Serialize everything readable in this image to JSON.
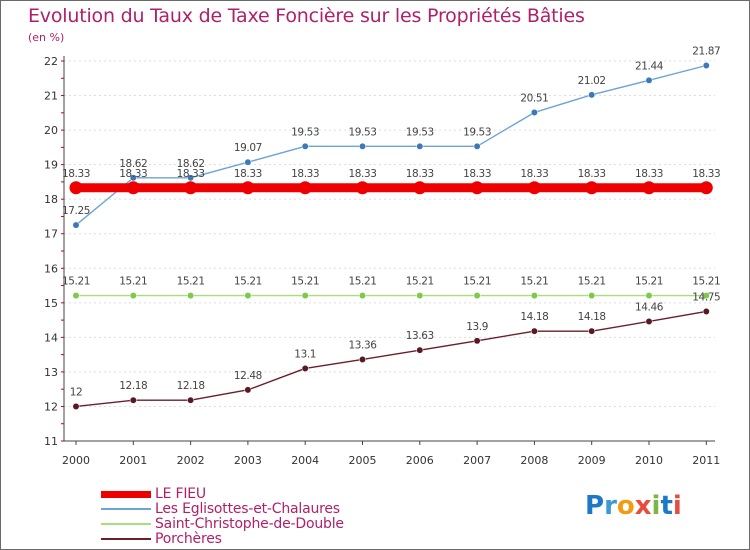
{
  "header": {
    "title": "Evolution du Taux de Taxe Foncière sur les Propriétés Bâties",
    "subtitle": "(en %)"
  },
  "chart_data": {
    "type": "line",
    "title": "Evolution du Taux de Taxe Foncière sur les Propriétés Bâties",
    "ylabel": "(en %)",
    "xlabel": "",
    "categories": [
      "2000",
      "2001",
      "2002",
      "2003",
      "2004",
      "2005",
      "2006",
      "2007",
      "2008",
      "2009",
      "2010",
      "2011"
    ],
    "ylim": [
      11,
      22
    ],
    "yticks": [
      "11",
      "12",
      "13",
      "14",
      "15",
      "16",
      "17",
      "18",
      "19",
      "20",
      "21",
      "22"
    ],
    "grid": "horizontal-dotted",
    "series": [
      {
        "name": "LE FIEU",
        "color": "#ee0000",
        "style": "thick",
        "values": [
          18.33,
          18.33,
          18.33,
          18.33,
          18.33,
          18.33,
          18.33,
          18.33,
          18.33,
          18.33,
          18.33,
          18.33
        ],
        "labels": [
          "18.33",
          "18.33",
          "18.33",
          "18.33",
          "18.33",
          "18.33",
          "18.33",
          "18.33",
          "18.33",
          "18.33",
          "18.33",
          "18.33"
        ]
      },
      {
        "name": "Les Eglisottes-et-Chalaures",
        "color": "#6ea3d6",
        "marker_color": "#3a7ab8",
        "style": "normal",
        "values": [
          17.25,
          18.62,
          18.62,
          19.07,
          19.53,
          19.53,
          19.53,
          19.53,
          20.51,
          21.02,
          21.44,
          21.87
        ],
        "labels": [
          "17.25",
          "18.62",
          "18.62",
          "19.07",
          "19.53",
          "19.53",
          "19.53",
          "19.53",
          "20.51",
          "21.02",
          "21.44",
          "21.87"
        ]
      },
      {
        "name": "Saint-Christophe-de-Double",
        "color": "#a6e07a",
        "marker_color": "#7ec84a",
        "style": "normal",
        "values": [
          15.21,
          15.21,
          15.21,
          15.21,
          15.21,
          15.21,
          15.21,
          15.21,
          15.21,
          15.21,
          15.21,
          15.21
        ],
        "labels": [
          "15.21",
          "15.21",
          "15.21",
          "15.21",
          "15.21",
          "15.21",
          "15.21",
          "15.21",
          "15.21",
          "15.21",
          "15.21",
          "15.21"
        ]
      },
      {
        "name": "Porchères",
        "color": "#6b1f2a",
        "marker_color": "#5a1822",
        "style": "normal",
        "values": [
          12,
          12.18,
          12.18,
          12.48,
          13.1,
          13.36,
          13.63,
          13.9,
          14.18,
          14.18,
          14.46,
          14.75
        ],
        "labels": [
          "12",
          "12.18",
          "12.18",
          "12.48",
          "13.1",
          "13.36",
          "13.63",
          "13.9",
          "14.18",
          "14.18",
          "14.46",
          "14.75"
        ]
      }
    ],
    "legend_position": "bottom-left"
  },
  "legend": {
    "items": [
      {
        "label": "LE FIEU",
        "color": "#ee0000"
      },
      {
        "label": "Les Eglisottes-et-Chalaures",
        "color": "#6ea3d6"
      },
      {
        "label": "Saint-Christophe-de-Double",
        "color": "#a6e07a"
      },
      {
        "label": "Porchères",
        "color": "#6b1f2a"
      }
    ]
  },
  "logo": {
    "text": "Proxiti",
    "letters": [
      "P",
      "r",
      "o",
      "x",
      "i",
      "t",
      "i"
    ],
    "colors": [
      "#1e78c8",
      "#3a9ad8",
      "#f39c12",
      "#e74c3c",
      "#7ab648",
      "#1e78c8",
      "#e74c3c"
    ]
  },
  "colors": {
    "title": "#b0206a",
    "axis": "#444444",
    "grid": "#dddddd",
    "tick_red": "#cc0000"
  }
}
